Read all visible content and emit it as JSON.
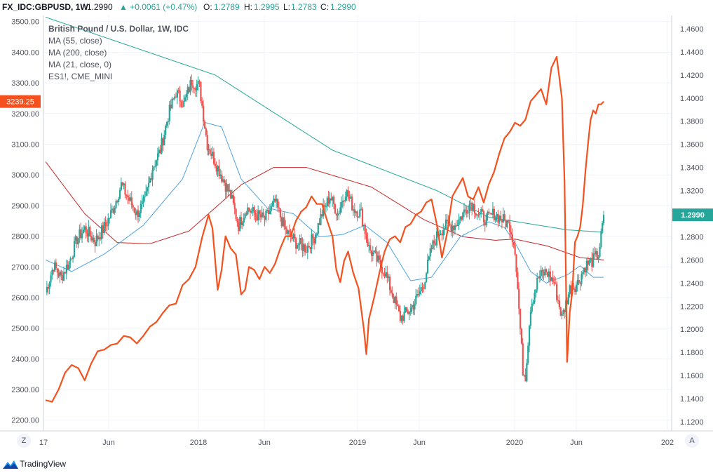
{
  "header": {
    "symbol": "FX_IDC:GBPUSD, 1W",
    "last": "1.2990",
    "change": "▲ +0.0061 (+0.47%)",
    "o_label": "O:",
    "o": "1.2789",
    "h_label": "H:",
    "h": "1.2995",
    "l_label": "L:",
    "l": "1.2783",
    "c_label": "C:",
    "c": "1.2990"
  },
  "legend": [
    "British Pound / U.S. Dollar, 1W, IDC",
    "MA (55, close)",
    "MA (200, close)",
    "MA (21, close, 0)",
    "ES1!, CME_MINI"
  ],
  "footer": {
    "brand": "TradingView",
    "z_button": "Z",
    "a_button": "A"
  },
  "colors": {
    "up": "#26a69a",
    "down": "#ef5350",
    "es": "#f4511e",
    "ma55": "#26a69a",
    "ma200": "#c62828",
    "ma21": "#4fa3e0",
    "grid": "#f0f3fa",
    "axis_text": "#50535e"
  },
  "chart_data": {
    "type": "candlestick",
    "x_ticks": [
      "17",
      "Jun",
      "2018",
      "Jun",
      "2019",
      "Jun",
      "2020",
      "Jun",
      "202"
    ],
    "left_axis": {
      "series": "ES1!",
      "ticks": [
        2200,
        2300,
        2400,
        2500,
        2600,
        2700,
        2800,
        2900,
        3000,
        3100,
        3200,
        3300,
        3400,
        3500
      ],
      "range": [
        2165,
        3520
      ]
    },
    "right_axis": {
      "series": "GBPUSD",
      "ticks": [
        1.12,
        1.14,
        1.16,
        1.18,
        1.2,
        1.22,
        1.24,
        1.26,
        1.28,
        1.3,
        1.32,
        1.34,
        1.36,
        1.38,
        1.4,
        1.42,
        1.44,
        1.46
      ],
      "range": [
        1.1121,
        1.4715
      ]
    },
    "es_last_label": "3239.25",
    "gbp_last_label": "1.2990",
    "gbpusd_close_anchors": [
      [
        0,
        1.232
      ],
      [
        6,
        1.255
      ],
      [
        12,
        1.245
      ],
      [
        18,
        1.258
      ],
      [
        24,
        1.278
      ],
      [
        30,
        1.287
      ],
      [
        38,
        1.276
      ],
      [
        46,
        1.29
      ],
      [
        52,
        1.305
      ],
      [
        58,
        1.325
      ],
      [
        64,
        1.312
      ],
      [
        70,
        1.3
      ],
      [
        76,
        1.31
      ],
      [
        82,
        1.34
      ],
      [
        88,
        1.355
      ],
      [
        94,
        1.385
      ],
      [
        100,
        1.405
      ],
      [
        106,
        1.395
      ],
      [
        112,
        1.415
      ],
      [
        118,
        1.41
      ],
      [
        124,
        1.36
      ],
      [
        130,
        1.345
      ],
      [
        136,
        1.33
      ],
      [
        142,
        1.315
      ],
      [
        148,
        1.29
      ],
      [
        154,
        1.305
      ],
      [
        160,
        1.3
      ],
      [
        168,
        1.295
      ],
      [
        176,
        1.31
      ],
      [
        184,
        1.285
      ],
      [
        192,
        1.275
      ],
      [
        200,
        1.27
      ],
      [
        206,
        1.28
      ],
      [
        212,
        1.3
      ],
      [
        218,
        1.315
      ],
      [
        224,
        1.3
      ],
      [
        230,
        1.32
      ],
      [
        236,
        1.305
      ],
      [
        242,
        1.3
      ],
      [
        248,
        1.27
      ],
      [
        254,
        1.26
      ],
      [
        260,
        1.25
      ],
      [
        266,
        1.23
      ],
      [
        272,
        1.21
      ],
      [
        278,
        1.215
      ],
      [
        284,
        1.225
      ],
      [
        290,
        1.24
      ],
      [
        296,
        1.27
      ],
      [
        302,
        1.285
      ],
      [
        308,
        1.29
      ],
      [
        314,
        1.29
      ],
      [
        320,
        1.3
      ],
      [
        326,
        1.31
      ],
      [
        332,
        1.3
      ],
      [
        338,
        1.295
      ],
      [
        344,
        1.3
      ],
      [
        350,
        1.295
      ],
      [
        356,
        1.29
      ],
      [
        360,
        1.27
      ],
      [
        364,
        1.2
      ],
      [
        366,
        1.165
      ],
      [
        368,
        1.16
      ],
      [
        372,
        1.22
      ],
      [
        378,
        1.245
      ],
      [
        384,
        1.25
      ],
      [
        390,
        1.24
      ],
      [
        396,
        1.21
      ],
      [
        402,
        1.235
      ],
      [
        408,
        1.24
      ],
      [
        414,
        1.255
      ],
      [
        420,
        1.26
      ],
      [
        424,
        1.265
      ],
      [
        426,
        1.28
      ],
      [
        428,
        1.299
      ]
    ],
    "ma55_anchors": [
      [
        0,
        1.47
      ],
      [
        130,
        1.42
      ],
      [
        220,
        1.355
      ],
      [
        300,
        1.32
      ],
      [
        340,
        1.297
      ],
      [
        400,
        1.286
      ],
      [
        428,
        1.284
      ]
    ],
    "ma200_anchors": [
      [
        0,
        1.345
      ],
      [
        30,
        1.3
      ],
      [
        55,
        1.275
      ],
      [
        80,
        1.274
      ],
      [
        110,
        1.285
      ],
      [
        150,
        1.325
      ],
      [
        175,
        1.34
      ],
      [
        200,
        1.34
      ],
      [
        250,
        1.323
      ],
      [
        290,
        1.295
      ],
      [
        320,
        1.28
      ],
      [
        345,
        1.277
      ],
      [
        360,
        1.278
      ],
      [
        385,
        1.272
      ],
      [
        410,
        1.262
      ],
      [
        428,
        1.26
      ]
    ],
    "ma21_anchors": [
      [
        0,
        1.26
      ],
      [
        20,
        1.25
      ],
      [
        45,
        1.265
      ],
      [
        75,
        1.29
      ],
      [
        105,
        1.33
      ],
      [
        122,
        1.379
      ],
      [
        135,
        1.375
      ],
      [
        150,
        1.33
      ],
      [
        170,
        1.305
      ],
      [
        190,
        1.3
      ],
      [
        210,
        1.28
      ],
      [
        228,
        1.282
      ],
      [
        245,
        1.29
      ],
      [
        262,
        1.275
      ],
      [
        280,
        1.242
      ],
      [
        296,
        1.245
      ],
      [
        318,
        1.28
      ],
      [
        340,
        1.293
      ],
      [
        352,
        1.288
      ],
      [
        360,
        1.275
      ],
      [
        372,
        1.25
      ],
      [
        384,
        1.24
      ],
      [
        400,
        1.247
      ],
      [
        410,
        1.255
      ],
      [
        420,
        1.245
      ],
      [
        428,
        1.245
      ]
    ],
    "es_anchors": [
      [
        0,
        2265
      ],
      [
        5,
        2260
      ],
      [
        10,
        2300
      ],
      [
        15,
        2355
      ],
      [
        20,
        2380
      ],
      [
        25,
        2370
      ],
      [
        30,
        2330
      ],
      [
        35,
        2385
      ],
      [
        40,
        2425
      ],
      [
        45,
        2430
      ],
      [
        50,
        2445
      ],
      [
        55,
        2450
      ],
      [
        60,
        2475
      ],
      [
        65,
        2470
      ],
      [
        70,
        2450
      ],
      [
        75,
        2475
      ],
      [
        80,
        2505
      ],
      [
        85,
        2520
      ],
      [
        90,
        2550
      ],
      [
        95,
        2575
      ],
      [
        100,
        2580
      ],
      [
        105,
        2640
      ],
      [
        110,
        2660
      ],
      [
        115,
        2700
      ],
      [
        120,
        2795
      ],
      [
        125,
        2870
      ],
      [
        128,
        2825
      ],
      [
        132,
        2625
      ],
      [
        135,
        2690
      ],
      [
        138,
        2800
      ],
      [
        142,
        2760
      ],
      [
        146,
        2740
      ],
      [
        150,
        2610
      ],
      [
        153,
        2625
      ],
      [
        156,
        2700
      ],
      [
        160,
        2690
      ],
      [
        164,
        2660
      ],
      [
        168,
        2700
      ],
      [
        172,
        2680
      ],
      [
        176,
        2710
      ],
      [
        180,
        2760
      ],
      [
        184,
        2800
      ],
      [
        188,
        2800
      ],
      [
        192,
        2850
      ],
      [
        196,
        2880
      ],
      [
        200,
        2895
      ],
      [
        204,
        2930
      ],
      [
        208,
        2905
      ],
      [
        212,
        2905
      ],
      [
        216,
        2850
      ],
      [
        220,
        2800
      ],
      [
        223,
        2690
      ],
      [
        226,
        2650
      ],
      [
        229,
        2720
      ],
      [
        232,
        2750
      ],
      [
        236,
        2680
      ],
      [
        240,
        2630
      ],
      [
        244,
        2500
      ],
      [
        246,
        2415
      ],
      [
        248,
        2530
      ],
      [
        252,
        2600
      ],
      [
        256,
        2680
      ],
      [
        260,
        2750
      ],
      [
        264,
        2790
      ],
      [
        268,
        2800
      ],
      [
        272,
        2780
      ],
      [
        276,
        2830
      ],
      [
        280,
        2840
      ],
      [
        284,
        2870
      ],
      [
        288,
        2880
      ],
      [
        292,
        2910
      ],
      [
        296,
        2920
      ],
      [
        300,
        2840
      ],
      [
        304,
        2730
      ],
      [
        308,
        2810
      ],
      [
        312,
        2930
      ],
      [
        316,
        2960
      ],
      [
        320,
        2990
      ],
      [
        324,
        2930
      ],
      [
        328,
        2920
      ],
      [
        332,
        2960
      ],
      [
        336,
        2910
      ],
      [
        340,
        2970
      ],
      [
        344,
        3010
      ],
      [
        348,
        3070
      ],
      [
        352,
        3120
      ],
      [
        356,
        3140
      ],
      [
        360,
        3170
      ],
      [
        364,
        3160
      ],
      [
        368,
        3180
      ],
      [
        372,
        3240
      ],
      [
        376,
        3260
      ],
      [
        380,
        3280
      ],
      [
        384,
        3230
      ],
      [
        388,
        3350
      ],
      [
        392,
        3385
      ],
      [
        396,
        3250
      ],
      [
        398,
        2980
      ],
      [
        400,
        2390
      ],
      [
        402,
        2550
      ],
      [
        404,
        2620
      ],
      [
        406,
        2780
      ],
      [
        408,
        2800
      ],
      [
        410,
        2830
      ],
      [
        412,
        2900
      ],
      [
        414,
        3010
      ],
      [
        416,
        3100
      ],
      [
        418,
        3180
      ],
      [
        420,
        3210
      ],
      [
        422,
        3200
      ],
      [
        424,
        3230
      ],
      [
        426,
        3230
      ],
      [
        428,
        3239
      ]
    ]
  }
}
